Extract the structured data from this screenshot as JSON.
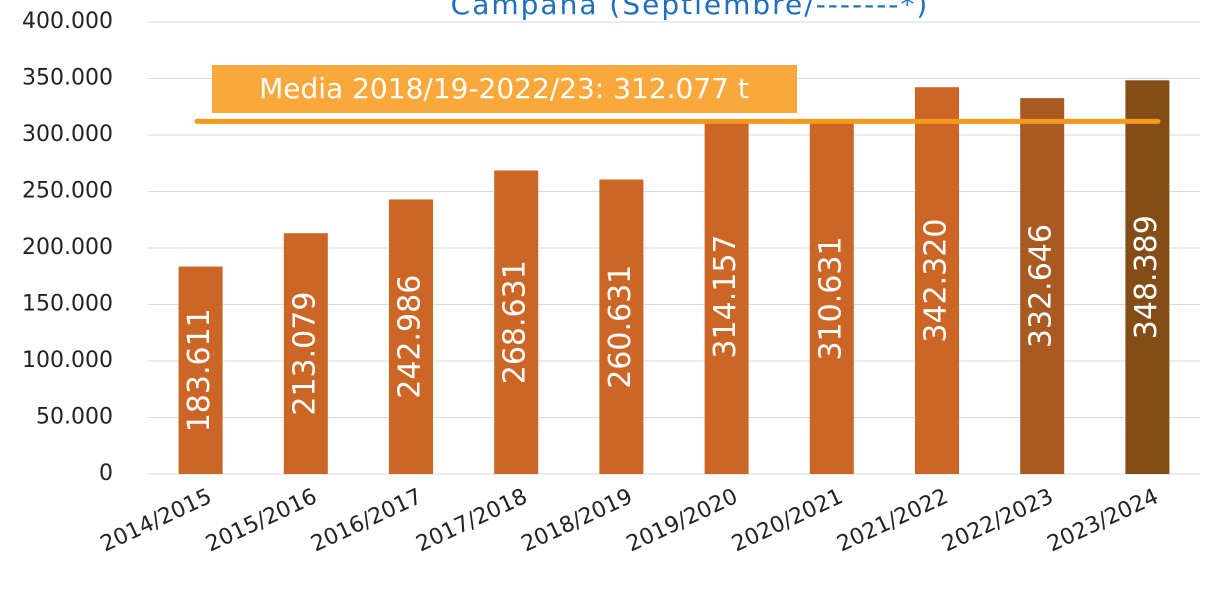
{
  "chart_data": {
    "type": "bar",
    "title": "Campaña (Septiembre/-------*)",
    "categories": [
      "2014/2015",
      "2015/2016",
      "2016/2017",
      "2017/2018",
      "2018/2019",
      "2019/2020",
      "2020/2021",
      "2021/2022",
      "2022/2023",
      "2023/2024"
    ],
    "values": [
      183611,
      213079,
      242986,
      268631,
      260631,
      314157,
      310631,
      342320,
      332646,
      348389
    ],
    "value_labels": [
      "183.611",
      "213.079",
      "242.986",
      "268.631",
      "260.631",
      "314.157",
      "310.631",
      "342.320",
      "332.646",
      "348.389"
    ],
    "colors": [
      "#cc6627",
      "#cc6627",
      "#cc6627",
      "#cc6627",
      "#cc6627",
      "#cc6627",
      "#cc6627",
      "#cc6627",
      "#a85a21",
      "#844d18"
    ],
    "ylim": [
      0,
      400000
    ],
    "yticks": [
      {
        "value": 0,
        "label": "0"
      },
      {
        "value": 50000,
        "label": "50.000"
      },
      {
        "value": 100000,
        "label": "100.000"
      },
      {
        "value": 150000,
        "label": "150.000"
      },
      {
        "value": 200000,
        "label": "200.000"
      },
      {
        "value": 250000,
        "label": "250.000"
      },
      {
        "value": 300000,
        "label": "300.000"
      },
      {
        "value": 350000,
        "label": "350.000"
      },
      {
        "value": 400000,
        "label": "400.000"
      }
    ],
    "grid": true,
    "reference_line": {
      "value": 312077,
      "label": "Media 2018/19-2022/23: 312.077 t",
      "color": "#f39a1a"
    }
  }
}
